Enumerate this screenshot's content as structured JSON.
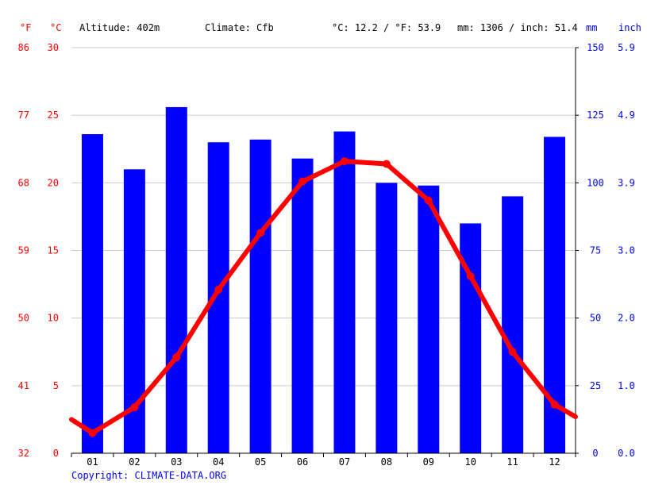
{
  "header": {
    "unit_f": "°F",
    "unit_c": "°C",
    "altitude": "Altitude: 402m",
    "climate": "Climate: Cfb",
    "avg_temp": "°C: 12.2 / °F: 53.9",
    "avg_precip": "mm: 1306 / inch: 51.4",
    "unit_mm": "mm",
    "unit_inch": "inch"
  },
  "copyright": "Copyright: CLIMATE-DATA.ORG",
  "colors": {
    "temperature": "#ff0000",
    "precipitation": "#0000ff",
    "grid": "#cccccc",
    "axis": "#000000"
  },
  "chart_data": {
    "type": "bar+line",
    "categories": [
      "01",
      "02",
      "03",
      "04",
      "05",
      "06",
      "07",
      "08",
      "09",
      "10",
      "11",
      "12"
    ],
    "series": [
      {
        "type": "bar",
        "axis": "right",
        "unit": "mm",
        "values": [
          118,
          105,
          128,
          115,
          116,
          109,
          119,
          100,
          99,
          85,
          95,
          117
        ]
      },
      {
        "type": "line",
        "axis": "left",
        "unit": "°C",
        "values": [
          1.5,
          3.4,
          7.1,
          12.1,
          16.3,
          20.1,
          21.6,
          21.4,
          18.7,
          13.1,
          7.5,
          3.6
        ]
      }
    ],
    "line_edge_values": {
      "start": 2.5,
      "end": 2.7
    },
    "left_axis_c": {
      "ylim": [
        0,
        30
      ],
      "ticks": [
        "0",
        "5",
        "10",
        "15",
        "20",
        "25",
        "30"
      ]
    },
    "left_axis_f": {
      "ticks": [
        "32",
        "41",
        "50",
        "59",
        "68",
        "77",
        "86"
      ]
    },
    "right_axis_mm": {
      "ylim": [
        0,
        150
      ],
      "ticks": [
        "0",
        "25",
        "50",
        "75",
        "100",
        "125",
        "150"
      ]
    },
    "right_axis_inch": {
      "ticks": [
        "0.0",
        "1.0",
        "2.0",
        "3.0",
        "3.9",
        "4.9",
        "5.9"
      ]
    },
    "grid": true
  }
}
